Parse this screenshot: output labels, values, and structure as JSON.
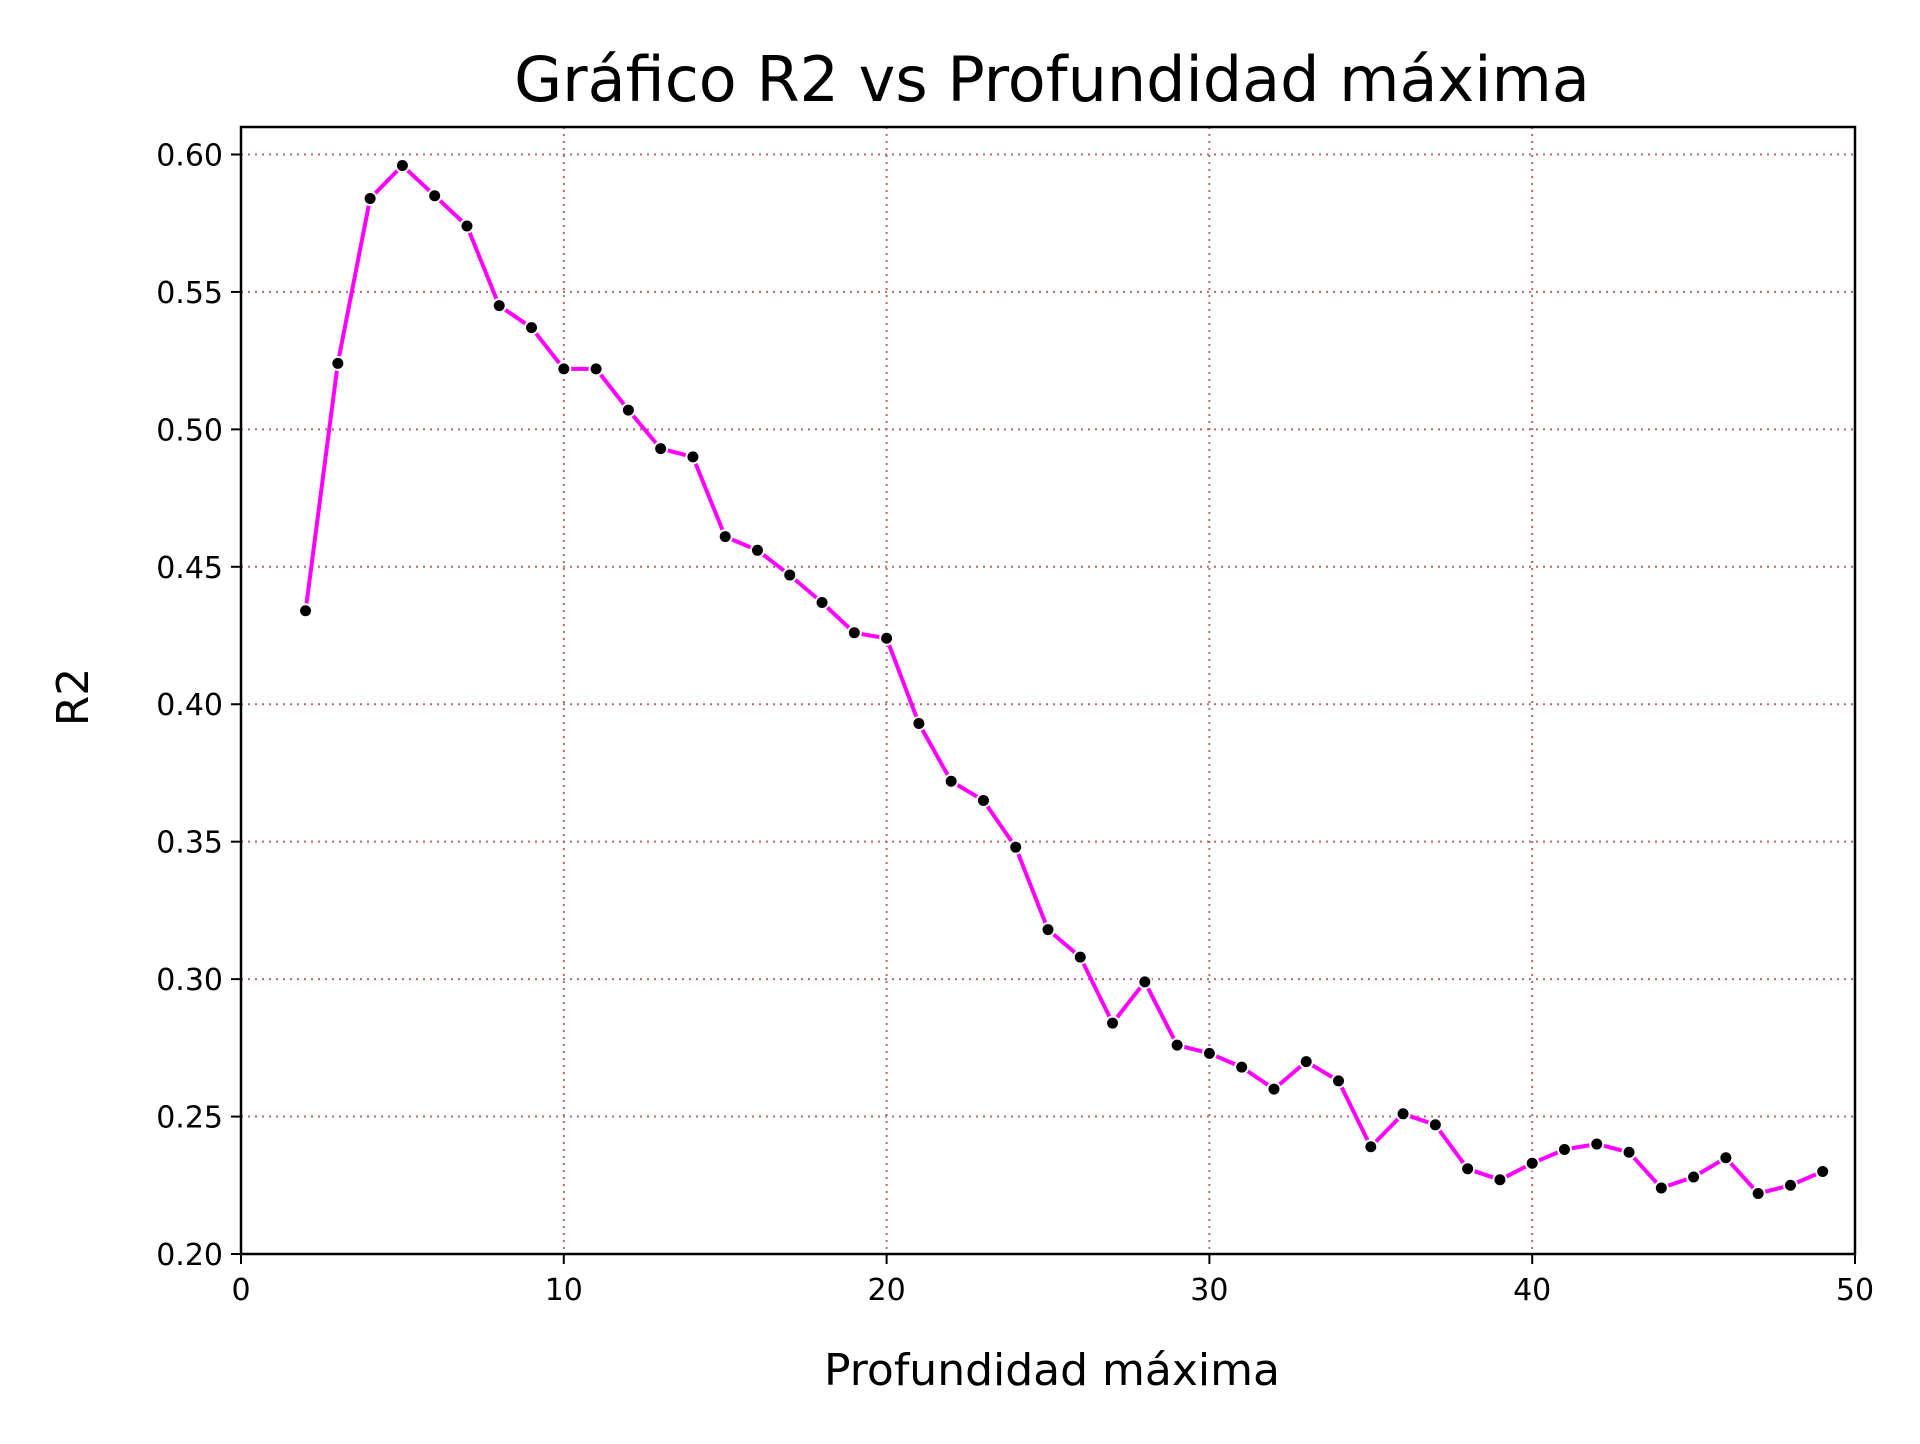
{
  "chart_data": {
    "type": "line",
    "title": "Gráfico R2 vs Profundidad máxima",
    "xlabel": "Profundidad máxima",
    "ylabel": "R2",
    "xlim": [
      0,
      50
    ],
    "ylim": [
      0.2,
      0.61
    ],
    "xticks": [
      0,
      10,
      20,
      30,
      40,
      50
    ],
    "yticks": [
      0.2,
      0.25,
      0.3,
      0.35,
      0.4,
      0.45,
      0.5,
      0.55,
      0.6
    ],
    "xtick_labels": [
      "0",
      "10",
      "20",
      "30",
      "40",
      "50"
    ],
    "ytick_labels": [
      "0.20",
      "0.25",
      "0.30",
      "0.35",
      "0.40",
      "0.45",
      "0.50",
      "0.55",
      "0.60"
    ],
    "grid": true,
    "line_color": "#ff00ff",
    "marker_color": "#000000",
    "grid_color": "#b06a6a",
    "x": [
      2,
      3,
      4,
      5,
      6,
      7,
      8,
      9,
      10,
      11,
      12,
      13,
      14,
      15,
      16,
      17,
      18,
      19,
      20,
      21,
      22,
      23,
      24,
      25,
      26,
      27,
      28,
      29,
      30,
      31,
      32,
      33,
      34,
      35,
      36,
      37,
      38,
      39,
      40,
      41,
      42,
      43,
      44,
      45,
      46,
      47,
      48,
      49
    ],
    "y": [
      0.434,
      0.524,
      0.584,
      0.596,
      0.585,
      0.574,
      0.545,
      0.537,
      0.522,
      0.522,
      0.507,
      0.493,
      0.49,
      0.461,
      0.456,
      0.447,
      0.437,
      0.426,
      0.424,
      0.393,
      0.372,
      0.365,
      0.348,
      0.318,
      0.308,
      0.284,
      0.299,
      0.276,
      0.273,
      0.268,
      0.26,
      0.27,
      0.263,
      0.239,
      0.251,
      0.247,
      0.231,
      0.227,
      0.233,
      0.238,
      0.24,
      0.237,
      0.224,
      0.228,
      0.235,
      0.222,
      0.225,
      0.23
    ]
  }
}
